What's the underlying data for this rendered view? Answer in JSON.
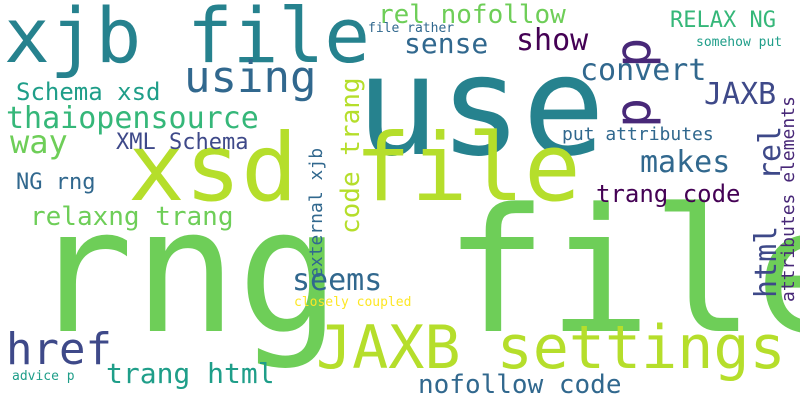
{
  "palette": {
    "yellow": "#fde725",
    "lime": "#b5de2b",
    "green": "#6ece58",
    "seagreen": "#35b779",
    "teal": "#1f9e89",
    "petrol": "#26828e",
    "blue": "#31688e",
    "indigo": "#3e4989",
    "violet": "#482878",
    "purple": "#440154"
  },
  "words": [
    {
      "text": "rng file",
      "color": "green"
    },
    {
      "text": "use",
      "color": "petrol"
    },
    {
      "text": "xsd file",
      "color": "lime"
    },
    {
      "text": "xjb file",
      "color": "petrol"
    },
    {
      "text": "JAXB settings",
      "color": "lime"
    },
    {
      "text": "p p",
      "color": "violet"
    },
    {
      "text": "using",
      "color": "blue"
    },
    {
      "text": "href",
      "color": "indigo"
    },
    {
      "text": "rel nofollow",
      "color": "green"
    },
    {
      "text": "sense",
      "color": "blue"
    },
    {
      "text": "show",
      "color": "purple"
    },
    {
      "text": "RELAX NG",
      "color": "seagreen"
    },
    {
      "text": "file rather",
      "color": "blue"
    },
    {
      "text": "somehow put",
      "color": "teal"
    },
    {
      "text": "convert",
      "color": "blue"
    },
    {
      "text": "JAXB",
      "color": "indigo"
    },
    {
      "text": "Schema xsd",
      "color": "teal"
    },
    {
      "text": "thaiopensource",
      "color": "seagreen"
    },
    {
      "text": "way",
      "color": "green"
    },
    {
      "text": "code trang",
      "color": "lime"
    },
    {
      "text": "XML Schema",
      "color": "indigo"
    },
    {
      "text": "put attributes",
      "color": "blue"
    },
    {
      "text": "makes",
      "color": "blue"
    },
    {
      "text": "rel",
      "color": "indigo"
    },
    {
      "text": "NG rng",
      "color": "blue"
    },
    {
      "text": "trang code",
      "color": "purple"
    },
    {
      "text": "external xjb",
      "color": "blue"
    },
    {
      "text": "relaxng trang",
      "color": "green"
    },
    {
      "text": "html",
      "color": "indigo"
    },
    {
      "text": "attributes elements",
      "color": "violet"
    },
    {
      "text": "seems",
      "color": "blue"
    },
    {
      "text": "closely coupled",
      "color": "yellow"
    },
    {
      "text": "trang html",
      "color": "teal"
    },
    {
      "text": "advice p",
      "color": "teal"
    },
    {
      "text": "nofollow code",
      "color": "blue"
    }
  ]
}
